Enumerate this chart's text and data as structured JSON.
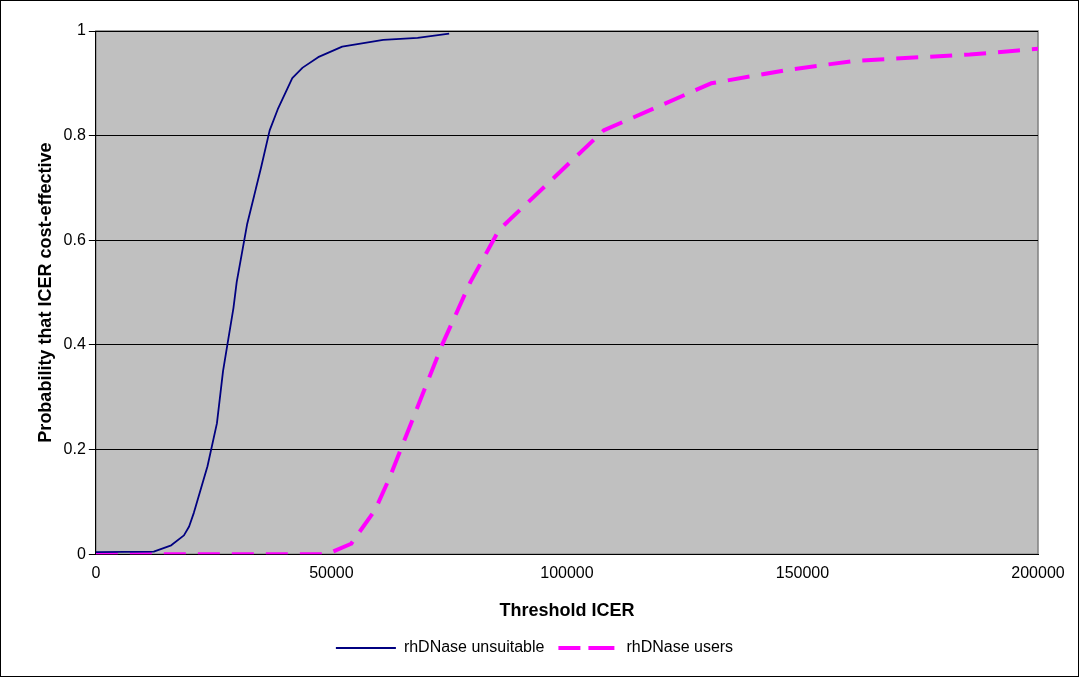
{
  "chart_data": {
    "type": "line",
    "xlabel": "Threshold ICER",
    "ylabel": "Probability that ICER cost-effective",
    "xlim": [
      0,
      200000
    ],
    "xticks": [
      0,
      50000,
      100000,
      150000,
      200000
    ],
    "ylim": [
      0,
      1
    ],
    "yticks": [
      0,
      0.2,
      0.4,
      0.6,
      0.8,
      1
    ],
    "grid": "y",
    "legend": "bottom",
    "marker": "none",
    "series": [
      {
        "name": "rhDNase unsuitable",
        "color": "#000080",
        "line_style": "solid",
        "x": [
          0,
          12300,
          16000,
          18700,
          19800,
          20800,
          23700,
          25700,
          27000,
          28100,
          29200,
          29900,
          32100,
          35100,
          36900,
          38600,
          41700,
          43900,
          47200,
          52300,
          61000,
          68300,
          75000
        ],
        "values": [
          0.004,
          0.005,
          0.017,
          0.036,
          0.053,
          0.079,
          0.168,
          0.25,
          0.35,
          0.41,
          0.47,
          0.52,
          0.63,
          0.74,
          0.81,
          0.85,
          0.91,
          0.93,
          0.95,
          0.97,
          0.983,
          0.987,
          0.995
        ]
      },
      {
        "name": "rhDNase users",
        "color": "#ff00ff",
        "line_style": "dashed",
        "x": [
          0,
          48000,
          49600,
          54200,
          59300,
          62300,
          73500,
          79500,
          85600,
          97300,
          107800,
          120500,
          130600,
          146400,
          161100,
          185500,
          200000
        ],
        "values": [
          0,
          0,
          0.002,
          0.02,
          0.085,
          0.145,
          0.4,
          0.52,
          0.62,
          0.72,
          0.81,
          0.86,
          0.9,
          0.925,
          0.943,
          0.955,
          0.966
        ]
      }
    ]
  }
}
